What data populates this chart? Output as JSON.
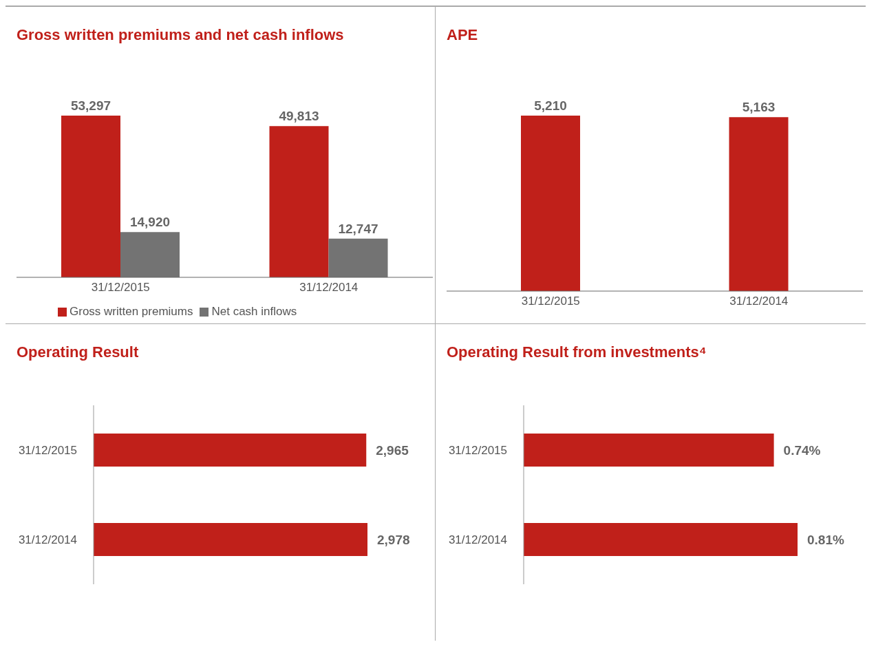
{
  "chart_data": [
    {
      "type": "bar",
      "title": "Gross written premiums and net cash inflows",
      "categories": [
        "31/12/2015",
        "31/12/2014"
      ],
      "series": [
        {
          "name": "Gross written premiums",
          "color": "#c0201a",
          "values": [
            53297,
            49813
          ],
          "value_labels": [
            "53,297",
            "49,813"
          ]
        },
        {
          "name": "Net cash inflows",
          "color": "#737373",
          "values": [
            14920,
            12747
          ],
          "value_labels": [
            "14,920",
            "12,747"
          ]
        }
      ],
      "legend": "bottom"
    },
    {
      "type": "bar",
      "title": "APE",
      "categories": [
        "31/12/2015",
        "31/12/2014"
      ],
      "series": [
        {
          "color": "#c0201a",
          "values": [
            5210,
            5163
          ],
          "value_labels": [
            "5,210",
            "5,163"
          ]
        }
      ]
    },
    {
      "type": "bar",
      "orientation": "horizontal",
      "title": "Operating Result",
      "categories": [
        "31/12/2015",
        "31/12/2014"
      ],
      "series": [
        {
          "color": "#c0201a",
          "values": [
            2965,
            2978
          ],
          "value_labels": [
            "2,965",
            "2,978"
          ]
        }
      ]
    },
    {
      "type": "bar",
      "orientation": "horizontal",
      "title": "Operating Result from investments⁴",
      "categories": [
        "31/12/2015",
        "31/12/2014"
      ],
      "series": [
        {
          "color": "#c0201a",
          "values": [
            0.74,
            0.81
          ],
          "value_labels": [
            "0.74%",
            "0.81%"
          ]
        }
      ]
    }
  ]
}
